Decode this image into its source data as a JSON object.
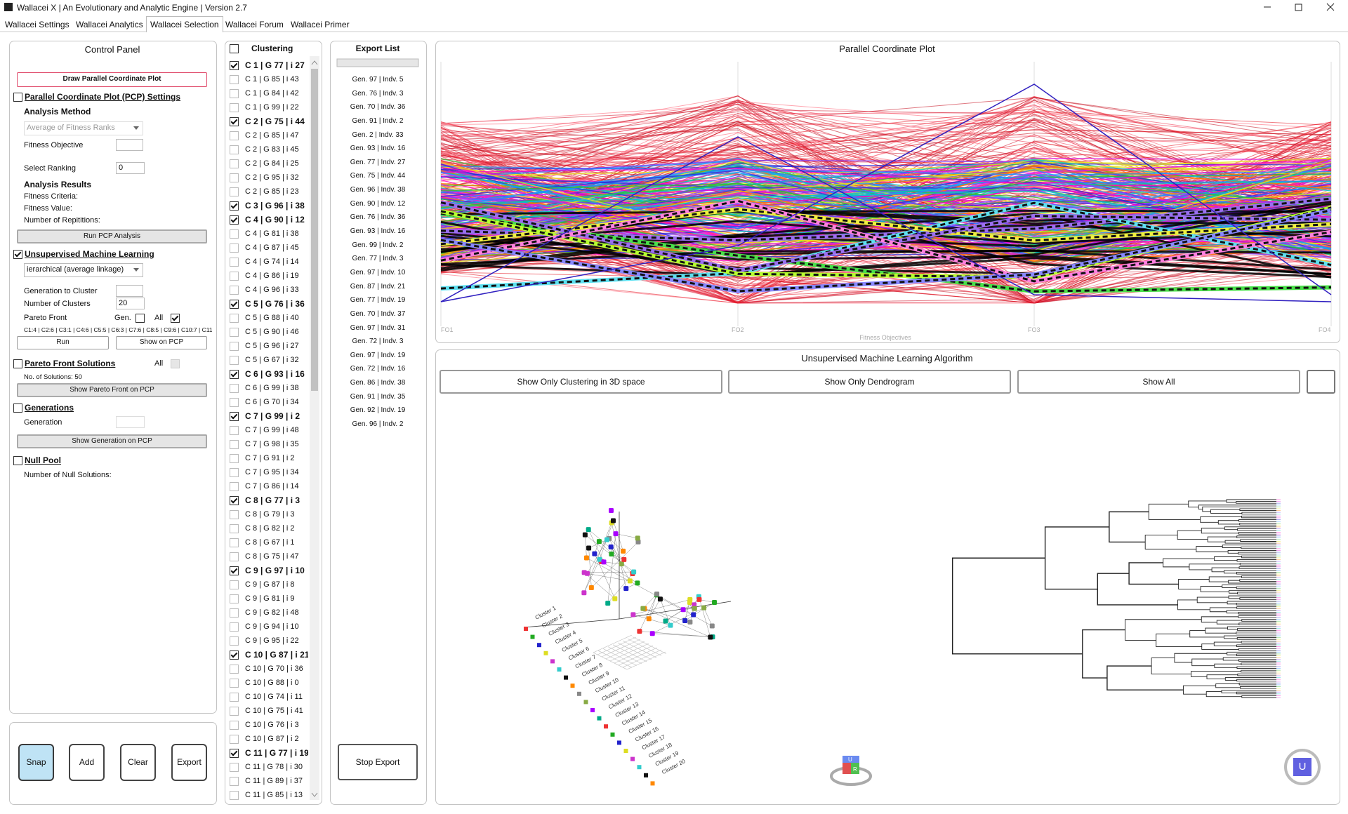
{
  "window": {
    "title": "Wallacei X  |  An Evolutionary and Analytic Engine  |  Version 2.7"
  },
  "tabs": [
    "Wallacei Settings",
    "Wallacei Analytics",
    "Wallacei Selection",
    "Wallacei Forum",
    "Wallacei Primer"
  ],
  "control_panel": {
    "title": "Control Panel",
    "draw_button": "Draw Parallel Coordinate Plot",
    "pcp_settings": "Parallel Coordinate Plot (PCP) Settings",
    "pcp_settings_checked": false,
    "analysis_method": "Analysis Method",
    "method_dropdown": "Average of Fitness Ranks",
    "fitness_objective": "Fitness Objective",
    "select_ranking": "Select Ranking",
    "select_ranking_value": "0",
    "analysis_results": "Analysis Results",
    "fitness_criteria": "Fitness Criteria:",
    "fitness_value": "Fitness Value:",
    "repetitions": "Number of Repititions:",
    "run_pcp_button": "Run PCP Analysis",
    "uml": "Unsupervised Machine Learning",
    "uml_checked": true,
    "uml_dropdown": "ierarchical (average linkage)",
    "generation_to_cluster": "Generation to Cluster",
    "number_of_clusters": "Number of Clusters",
    "number_of_clusters_value": "20",
    "pareto_front": "Pareto Front",
    "gen": "Gen.",
    "gen_checked": false,
    "all": "All",
    "all_checked": true,
    "cluster_summary": "C1:4 | C2:6 | C3:1 | C4:6 | C5:5 | C6:3 | C7:6 | C8:5 | C9:6 | C10:7 | C11:",
    "run_button": "Run",
    "show_on_pcp_button": "Show on PCP",
    "pareto_solutions": "Pareto Front Solutions",
    "pareto_solutions_checked": false,
    "pareto_all": "All",
    "pareto_all_checked": false,
    "no_of_solutions": "No. of Solutions: 50",
    "show_pareto_button": "Show Pareto Front on PCP",
    "generations": "Generations",
    "generations_checked": false,
    "generation": "Generation",
    "show_generation_button": "Show Generation on PCP",
    "null_pool": "Null Pool",
    "null_pool_checked": false,
    "null_solutions": "Number of Null Solutions:"
  },
  "actions": [
    "Snap",
    "Add",
    "Clear",
    "Export"
  ],
  "clustering": {
    "header": "Clustering",
    "header_checked": false,
    "items": [
      {
        "label": "C 1 | G 77 | i 27",
        "checked": true
      },
      {
        "label": "C 1 | G 85 | i 43",
        "checked": false
      },
      {
        "label": "C 1 | G 84 | i 42",
        "checked": false
      },
      {
        "label": "C 1 | G 99 | i 22",
        "checked": false
      },
      {
        "label": "C 2 | G 75 | i 44",
        "checked": true
      },
      {
        "label": "C 2 | G 85 | i 47",
        "checked": false
      },
      {
        "label": "C 2 | G 83 | i 45",
        "checked": false
      },
      {
        "label": "C 2 | G 84 | i 25",
        "checked": false
      },
      {
        "label": "C 2 | G 95 | i 32",
        "checked": false
      },
      {
        "label": "C 2 | G 85 | i 23",
        "checked": false
      },
      {
        "label": "C 3 | G 96 | i 38",
        "checked": true
      },
      {
        "label": "C 4 | G 90 | i 12",
        "checked": true
      },
      {
        "label": "C 4 | G 81 | i 38",
        "checked": false
      },
      {
        "label": "C 4 | G 87 | i 45",
        "checked": false
      },
      {
        "label": "C 4 | G 74 | i 14",
        "checked": false
      },
      {
        "label": "C 4 | G 86 | i 19",
        "checked": false
      },
      {
        "label": "C 4 | G 96 | i 33",
        "checked": false
      },
      {
        "label": "C 5 | G 76 | i 36",
        "checked": true
      },
      {
        "label": "C 5 | G 88 | i 40",
        "checked": false
      },
      {
        "label": "C 5 | G 90 | i 46",
        "checked": false
      },
      {
        "label": "C 5 | G 96 | i 27",
        "checked": false
      },
      {
        "label": "C 5 | G 67 | i 32",
        "checked": false
      },
      {
        "label": "C 6 | G 93 | i 16",
        "checked": true
      },
      {
        "label": "C 6 | G 99 | i 38",
        "checked": false
      },
      {
        "label": "C 6 | G 70 | i 34",
        "checked": false
      },
      {
        "label": "C 7 | G 99 | i 2",
        "checked": true
      },
      {
        "label": "C 7 | G 99 | i 48",
        "checked": false
      },
      {
        "label": "C 7 | G 98 | i 35",
        "checked": false
      },
      {
        "label": "C 7 | G 91 | i 2",
        "checked": false
      },
      {
        "label": "C 7 | G 95 | i 34",
        "checked": false
      },
      {
        "label": "C 7 | G 86 | i 14",
        "checked": false
      },
      {
        "label": "C 8 | G 77 | i 3",
        "checked": true
      },
      {
        "label": "C 8 | G 79 | i 3",
        "checked": false
      },
      {
        "label": "C 8 | G 82 | i 2",
        "checked": false
      },
      {
        "label": "C 8 | G 67 | i 1",
        "checked": false
      },
      {
        "label": "C 8 | G 75 | i 47",
        "checked": false
      },
      {
        "label": "C 9 | G 97 | i 10",
        "checked": true
      },
      {
        "label": "C 9 | G 87 | i 8",
        "checked": false
      },
      {
        "label": "C 9 | G 81 | i 9",
        "checked": false
      },
      {
        "label": "C 9 | G 82 | i 48",
        "checked": false
      },
      {
        "label": "C 9 | G 94 | i 10",
        "checked": false
      },
      {
        "label": "C 9 | G 95 | i 22",
        "checked": false
      },
      {
        "label": "C 10 | G 87 | i 21",
        "checked": true
      },
      {
        "label": "C 10 | G 70 | i 36",
        "checked": false
      },
      {
        "label": "C 10 | G 88 | i 0",
        "checked": false
      },
      {
        "label": "C 10 | G 74 | i 11",
        "checked": false
      },
      {
        "label": "C 10 | G 75 | i 41",
        "checked": false
      },
      {
        "label": "C 10 | G 76 | i 3",
        "checked": false
      },
      {
        "label": "C 10 | G 87 | i 2",
        "checked": false
      },
      {
        "label": "C 11 | G 77 | i 19",
        "checked": true
      },
      {
        "label": "C 11 | G 78 | i 30",
        "checked": false
      },
      {
        "label": "C 11 | G 89 | i 37",
        "checked": false
      },
      {
        "label": "C 11 | G 85 | i 13",
        "checked": false
      }
    ]
  },
  "export_list": {
    "header": "Export List",
    "items": [
      "Gen. 97 | Indv. 5",
      "Gen. 76 | Indv. 3",
      "Gen. 70 | Indv. 36",
      "Gen. 91 | Indv. 2",
      "Gen. 2 | Indv. 33",
      "Gen. 93 | Indv. 16",
      "Gen. 77 | Indv. 27",
      "Gen. 75 | Indv. 44",
      "Gen. 96 | Indv. 38",
      "Gen. 90 | Indv. 12",
      "Gen. 76 | Indv. 36",
      "Gen. 93 | Indv. 16",
      "Gen. 99 | Indv. 2",
      "Gen. 77 | Indv. 3",
      "Gen. 97 | Indv. 10",
      "Gen. 87 | Indv. 21",
      "Gen. 77 | Indv. 19",
      "Gen. 70 | Indv. 37",
      "Gen. 97 | Indv. 31",
      "Gen. 72 | Indv. 3",
      "Gen. 97 | Indv. 19",
      "Gen. 72 | Indv. 16",
      "Gen. 86 | Indv. 38",
      "Gen. 91 | Indv. 35",
      "Gen. 92 | Indv. 19",
      "Gen. 96 | Indv. 2"
    ],
    "stop_button": "Stop Export"
  },
  "pcp": {
    "title": "Parallel Coordinate Plot",
    "axes": [
      "FO1",
      "FO2",
      "FO3",
      "FO4"
    ],
    "x_label": "Fitness Objectives"
  },
  "uml": {
    "title": "Unsupervised Machine Learning Algorithm",
    "buttons": [
      "Show Only Clustering in 3D space",
      "Show Only Dendrogram",
      "Show All"
    ],
    "cluster_labels": [
      "Cluster 1",
      "Cluster 2",
      "Cluster 3",
      "Cluster 4",
      "Cluster 5",
      "Cluster 6",
      "Cluster 7",
      "Cluster 8",
      "Cluster 9",
      "Cluster 10",
      "Cluster 11",
      "Cluster 12",
      "Cluster 13",
      "Cluster 14",
      "Cluster 15",
      "Cluster 16",
      "Cluster 17",
      "Cluster 18",
      "Cluster 19",
      "Cluster 20"
    ],
    "cube_labels": [
      "U",
      "R"
    ],
    "view_button": "U"
  }
}
